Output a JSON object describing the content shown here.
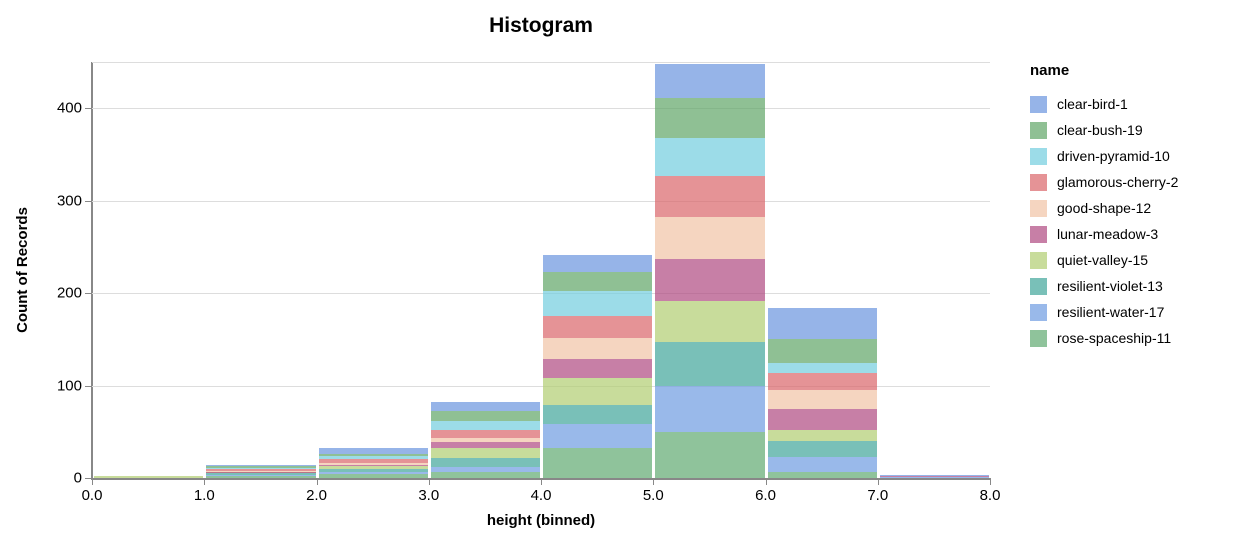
{
  "chart_data": {
    "type": "bar",
    "variant": "stacked-histogram",
    "title": "Histogram",
    "xlabel": "height (binned)",
    "ylabel": "Count of Records",
    "legend_title": "name",
    "legend_position": "right",
    "grid": true,
    "opacity": 0.7,
    "xlim": [
      0,
      8
    ],
    "ylim": [
      0,
      450
    ],
    "x_tick_labels": [
      "0.0",
      "1.0",
      "2.0",
      "3.0",
      "4.0",
      "5.0",
      "6.0",
      "7.0",
      "8.0"
    ],
    "y_ticks": [
      0,
      100,
      200,
      300,
      400
    ],
    "grid_values": [
      100,
      200,
      300,
      400,
      450
    ],
    "bin_edges": [
      0,
      1,
      2,
      3,
      4,
      5,
      6,
      7,
      8
    ],
    "bin_totals": [
      2,
      14,
      32,
      82,
      241,
      448,
      184,
      3
    ],
    "stack_order": "first series on top, last on bottom",
    "series": [
      {
        "name": "clear-bird-1",
        "color": "#6a94de",
        "values": [
          0,
          1,
          6,
          10,
          18,
          37,
          34,
          1
        ]
      },
      {
        "name": "clear-bush-19",
        "color": "#5fa566",
        "values": [
          0,
          2,
          2,
          10,
          21,
          43,
          26,
          0
        ]
      },
      {
        "name": "driven-pyramid-10",
        "color": "#72cdde",
        "values": [
          0,
          1,
          3,
          10,
          27,
          41,
          10,
          0
        ]
      },
      {
        "name": "glamorous-cherry-2",
        "color": "#da656a",
        "values": [
          0,
          2,
          5,
          9,
          24,
          45,
          19,
          0
        ]
      },
      {
        "name": "good-shape-12",
        "color": "#f1c3a5",
        "values": [
          0,
          1,
          2,
          4,
          22,
          45,
          20,
          0
        ]
      },
      {
        "name": "lunar-meadow-3",
        "color": "#af4880",
        "values": [
          0,
          1,
          1,
          7,
          21,
          45,
          23,
          1
        ]
      },
      {
        "name": "quiet-valley-15",
        "color": "#b0cd70",
        "values": [
          2,
          1,
          3,
          10,
          29,
          45,
          12,
          0
        ]
      },
      {
        "name": "resilient-violet-13",
        "color": "#40a59a",
        "values": [
          0,
          2,
          3,
          10,
          21,
          47,
          17,
          0
        ]
      },
      {
        "name": "resilient-water-17",
        "color": "#6d9be1",
        "values": [
          0,
          1,
          3,
          6,
          26,
          50,
          16,
          1
        ]
      },
      {
        "name": "rose-spaceship-11",
        "color": "#60a970",
        "values": [
          0,
          2,
          4,
          6,
          32,
          50,
          7,
          0
        ]
      }
    ],
    "axis_color": "#888888",
    "grid_color": "#dddddd",
    "label_color": "#000000"
  }
}
